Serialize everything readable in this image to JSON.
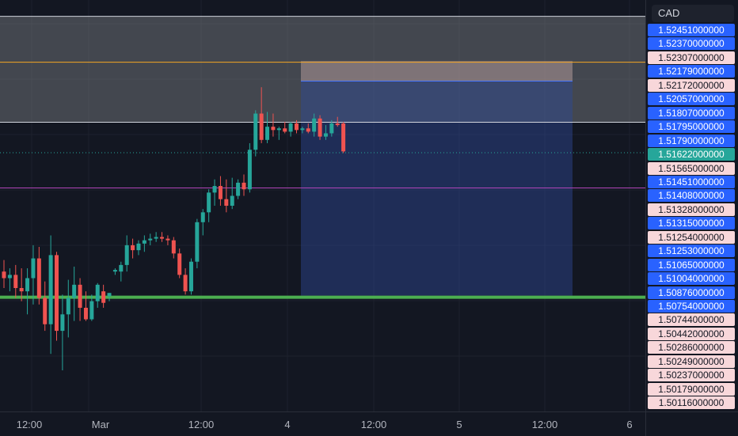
{
  "colors": {
    "background": "#131722",
    "grid": "#1e222d",
    "bull": "#26a69a",
    "bear": "#ef5350",
    "zone_fill": "#7f8288",
    "stop_zone": "#c8a8a8",
    "target_zone": "#2f4a9a",
    "orange_line": "#f5a623",
    "magenta_line": "#b044b8",
    "green_line": "#4caf50",
    "current_price_line": "#26a69a"
  },
  "price_scale": {
    "currency": "CAD",
    "labels": [
      {
        "value": "1.52451000000",
        "style": "blue"
      },
      {
        "value": "1.52370000000",
        "style": "blue"
      },
      {
        "value": "1.52307000000",
        "style": "pink"
      },
      {
        "value": "1.52179000000",
        "style": "blue"
      },
      {
        "value": "1.52172000000",
        "style": "pink"
      },
      {
        "value": "1.52057000000",
        "style": "blue"
      },
      {
        "value": "1.51807000000",
        "style": "blue"
      },
      {
        "value": "1.51795000000",
        "style": "blue"
      },
      {
        "value": "1.51790000000",
        "style": "blue"
      },
      {
        "value": "1.51622000000",
        "style": "green"
      },
      {
        "value": "1.51565000000",
        "style": "pink"
      },
      {
        "value": "1.51451000000",
        "style": "blue"
      },
      {
        "value": "1.51408000000",
        "style": "blue"
      },
      {
        "value": "1.51328000000",
        "style": "pink"
      },
      {
        "value": "1.51315000000",
        "style": "blue"
      },
      {
        "value": "1.51254000000",
        "style": "pink"
      },
      {
        "value": "1.51253000000",
        "style": "blue"
      },
      {
        "value": "1.51065000000",
        "style": "blue"
      },
      {
        "value": "1.51004000000",
        "style": "blue"
      },
      {
        "value": "1.50876000000",
        "style": "blue"
      },
      {
        "value": "1.50754000000",
        "style": "blue"
      },
      {
        "value": "1.50744000000",
        "style": "pink"
      },
      {
        "value": "1.50442000000",
        "style": "pink"
      },
      {
        "value": "1.50286000000",
        "style": "pink"
      },
      {
        "value": "1.50249000000",
        "style": "pink"
      },
      {
        "value": "1.50237000000",
        "style": "pink"
      },
      {
        "value": "1.50179000000",
        "style": "pink"
      },
      {
        "value": "1.50116000000",
        "style": "pink"
      }
    ]
  },
  "time_axis": {
    "labels": [
      "12:00",
      "Mar",
      "12:00",
      "4",
      "12:00",
      "5",
      "12:00",
      "6"
    ]
  },
  "chart_data": {
    "type": "candlestick",
    "symbol_currency": "CAD",
    "current_price": 1.51622,
    "ylim": [
      1.5005,
      1.5255
    ],
    "horizontal_lines": [
      {
        "price": 1.52451,
        "color": "white"
      },
      {
        "price": 1.52172,
        "color": "orange"
      },
      {
        "price": 1.51807,
        "color": "white"
      },
      {
        "price": 1.51408,
        "color": "magenta"
      },
      {
        "price": 1.50744,
        "color": "green"
      }
    ],
    "shaded_zone": {
      "top": 1.52451,
      "bottom": 1.51807
    },
    "position_tool": {
      "entry": 1.52057,
      "stop": 1.52179,
      "target": 1.50754
    },
    "candles": [
      {
        "o": 1.509,
        "h": 1.5097,
        "l": 1.508,
        "c": 1.5086
      },
      {
        "o": 1.5086,
        "h": 1.5092,
        "l": 1.5078,
        "c": 1.5088
      },
      {
        "o": 1.5088,
        "h": 1.5094,
        "l": 1.5074,
        "c": 1.508
      },
      {
        "o": 1.508,
        "h": 1.5092,
        "l": 1.5072,
        "c": 1.5078
      },
      {
        "o": 1.5078,
        "h": 1.5092,
        "l": 1.5064,
        "c": 1.5086
      },
      {
        "o": 1.5086,
        "h": 1.5106,
        "l": 1.507,
        "c": 1.5098
      },
      {
        "o": 1.5098,
        "h": 1.5105,
        "l": 1.507,
        "c": 1.5074
      },
      {
        "o": 1.5074,
        "h": 1.5084,
        "l": 1.5054,
        "c": 1.5058
      },
      {
        "o": 1.5058,
        "h": 1.5112,
        "l": 1.504,
        "c": 1.51
      },
      {
        "o": 1.51,
        "h": 1.5102,
        "l": 1.5048,
        "c": 1.5054
      },
      {
        "o": 1.5054,
        "h": 1.5076,
        "l": 1.503,
        "c": 1.5064
      },
      {
        "o": 1.5064,
        "h": 1.5085,
        "l": 1.505,
        "c": 1.5074
      },
      {
        "o": 1.5074,
        "h": 1.5093,
        "l": 1.506,
        "c": 1.5082
      },
      {
        "o": 1.5082,
        "h": 1.5086,
        "l": 1.506,
        "c": 1.5068
      },
      {
        "o": 1.5068,
        "h": 1.5078,
        "l": 1.506,
        "c": 1.5061
      },
      {
        "o": 1.5061,
        "h": 1.5076,
        "l": 1.506,
        "c": 1.5072
      },
      {
        "o": 1.5072,
        "h": 1.5083,
        "l": 1.5068,
        "c": 1.5082
      },
      {
        "o": 1.5078,
        "h": 1.5082,
        "l": 1.5068,
        "c": 1.5071
      },
      {
        "o": 1.5075,
        "h": 1.5077,
        "l": 1.5072,
        "c": 1.5077
      },
      {
        "o": 1.509,
        "h": 1.5092,
        "l": 1.5088,
        "c": 1.5091
      },
      {
        "o": 1.509,
        "h": 1.5096,
        "l": 1.5084,
        "c": 1.5094
      },
      {
        "o": 1.5094,
        "h": 1.5112,
        "l": 1.509,
        "c": 1.5106
      },
      {
        "o": 1.5106,
        "h": 1.511,
        "l": 1.5098,
        "c": 1.5103
      },
      {
        "o": 1.5103,
        "h": 1.5109,
        "l": 1.51,
        "c": 1.5107
      },
      {
        "o": 1.5107,
        "h": 1.5112,
        "l": 1.5102,
        "c": 1.5109
      },
      {
        "o": 1.5109,
        "h": 1.5113,
        "l": 1.5106,
        "c": 1.511
      },
      {
        "o": 1.511,
        "h": 1.5114,
        "l": 1.5108,
        "c": 1.5111
      },
      {
        "o": 1.5111,
        "h": 1.5114,
        "l": 1.5108,
        "c": 1.511
      },
      {
        "o": 1.511,
        "h": 1.5112,
        "l": 1.5106,
        "c": 1.5109
      },
      {
        "o": 1.5109,
        "h": 1.5111,
        "l": 1.5098,
        "c": 1.5101
      },
      {
        "o": 1.5101,
        "h": 1.5104,
        "l": 1.5086,
        "c": 1.5088
      },
      {
        "o": 1.5088,
        "h": 1.5092,
        "l": 1.5076,
        "c": 1.5078
      },
      {
        "o": 1.5078,
        "h": 1.5098,
        "l": 1.5076,
        "c": 1.5096
      },
      {
        "o": 1.5096,
        "h": 1.5122,
        "l": 1.5092,
        "c": 1.512
      },
      {
        "o": 1.512,
        "h": 1.5128,
        "l": 1.5112,
        "c": 1.5126
      },
      {
        "o": 1.5126,
        "h": 1.514,
        "l": 1.512,
        "c": 1.5138
      },
      {
        "o": 1.5138,
        "h": 1.5146,
        "l": 1.513,
        "c": 1.5142
      },
      {
        "o": 1.5142,
        "h": 1.5148,
        "l": 1.513,
        "c": 1.5134
      },
      {
        "o": 1.5134,
        "h": 1.5146,
        "l": 1.5126,
        "c": 1.513
      },
      {
        "o": 1.513,
        "h": 1.5147,
        "l": 1.5128,
        "c": 1.5136
      },
      {
        "o": 1.5136,
        "h": 1.5146,
        "l": 1.5134,
        "c": 1.5144
      },
      {
        "o": 1.5144,
        "h": 1.5149,
        "l": 1.5136,
        "c": 1.514
      },
      {
        "o": 1.514,
        "h": 1.5168,
        "l": 1.5138,
        "c": 1.5164
      },
      {
        "o": 1.5164,
        "h": 1.5188,
        "l": 1.516,
        "c": 1.5186
      },
      {
        "o": 1.5186,
        "h": 1.5202,
        "l": 1.5168,
        "c": 1.517
      },
      {
        "o": 1.517,
        "h": 1.5187,
        "l": 1.5168,
        "c": 1.5178
      },
      {
        "o": 1.5178,
        "h": 1.5186,
        "l": 1.5172,
        "c": 1.5176
      },
      {
        "o": 1.5176,
        "h": 1.5178,
        "l": 1.517,
        "c": 1.5177
      },
      {
        "o": 1.5177,
        "h": 1.5181,
        "l": 1.5174,
        "c": 1.5175
      },
      {
        "o": 1.5175,
        "h": 1.5181,
        "l": 1.5172,
        "c": 1.518
      },
      {
        "o": 1.518,
        "h": 1.5182,
        "l": 1.5174,
        "c": 1.5176
      },
      {
        "o": 1.5176,
        "h": 1.5178,
        "l": 1.5174,
        "c": 1.5177
      },
      {
        "o": 1.5177,
        "h": 1.518,
        "l": 1.5174,
        "c": 1.5175
      },
      {
        "o": 1.5175,
        "h": 1.5186,
        "l": 1.5172,
        "c": 1.5183
      },
      {
        "o": 1.5183,
        "h": 1.5185,
        "l": 1.517,
        "c": 1.5172
      },
      {
        "o": 1.5172,
        "h": 1.5179,
        "l": 1.517,
        "c": 1.5174
      },
      {
        "o": 1.5174,
        "h": 1.5182,
        "l": 1.5172,
        "c": 1.518
      },
      {
        "o": 1.518,
        "h": 1.5184,
        "l": 1.5178,
        "c": 1.5179
      },
      {
        "o": 1.518,
        "h": 1.5181,
        "l": 1.5162,
        "c": 1.5163
      }
    ]
  }
}
